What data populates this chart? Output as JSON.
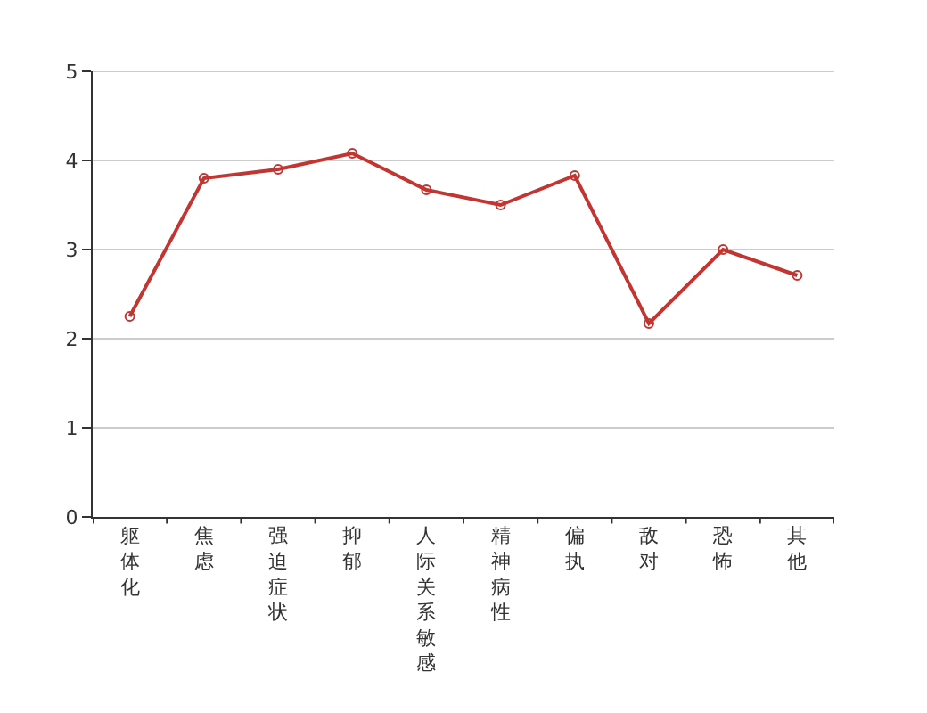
{
  "chart_data": {
    "type": "line",
    "categories": [
      "躯体化",
      "焦虑",
      "强迫症状",
      "抑郁",
      "人际关系敏感",
      "精神病性",
      "偏执",
      "敌对",
      "恐怖",
      "其他"
    ],
    "series": [
      {
        "color": "#c23531",
        "values": [
          2.25,
          3.8,
          3.9,
          4.08,
          3.67,
          3.5,
          3.83,
          2.17,
          3.0,
          2.71
        ]
      }
    ],
    "ylim": [
      0,
      5
    ],
    "yticks": [
      0,
      1,
      2,
      3,
      4,
      5
    ],
    "grid": "y",
    "marker": "circle",
    "line_style": "solid",
    "legend": false
  }
}
